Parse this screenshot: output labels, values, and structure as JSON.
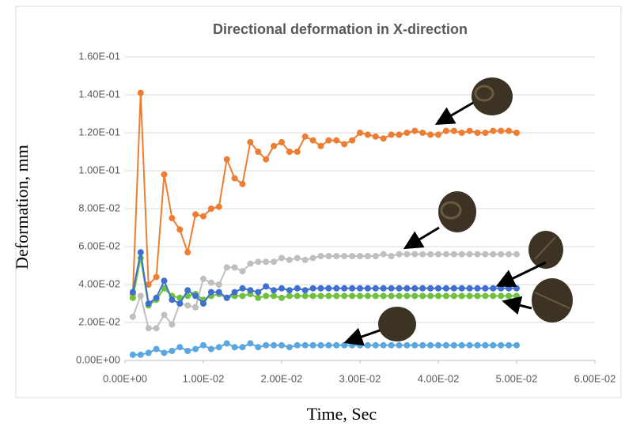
{
  "chart_data": {
    "type": "line",
    "title": "Directional deformation in X-direction",
    "x_label": "Time, Sec",
    "y_label": "Deformation, mm",
    "x": [
      0.001,
      0.002,
      0.003,
      0.004,
      0.005,
      0.006,
      0.007,
      0.008,
      0.009,
      0.01,
      0.011,
      0.012,
      0.013,
      0.014,
      0.015,
      0.016,
      0.017,
      0.018,
      0.019,
      0.02,
      0.021,
      0.022,
      0.023,
      0.024,
      0.025,
      0.026,
      0.027,
      0.028,
      0.029,
      0.03,
      0.031,
      0.032,
      0.033,
      0.034,
      0.035,
      0.036,
      0.037,
      0.038,
      0.039,
      0.04,
      0.041,
      0.042,
      0.043,
      0.044,
      0.045,
      0.046,
      0.047,
      0.048,
      0.049,
      0.05
    ],
    "series": [
      {
        "color": "#bfbfbf",
        "values": [
          0.023,
          0.034,
          0.017,
          0.017,
          0.024,
          0.019,
          0.03,
          0.029,
          0.028,
          0.043,
          0.041,
          0.04,
          0.049,
          0.049,
          0.047,
          0.051,
          0.052,
          0.052,
          0.052,
          0.054,
          0.053,
          0.054,
          0.053,
          0.054,
          0.055,
          0.055,
          0.055,
          0.055,
          0.055,
          0.055,
          0.055,
          0.055,
          0.056,
          0.055,
          0.056,
          0.056,
          0.056,
          0.056,
          0.056,
          0.056,
          0.056,
          0.056,
          0.056,
          0.056,
          0.056,
          0.056,
          0.056,
          0.056,
          0.056,
          0.056
        ]
      },
      {
        "color": "#ed7d31",
        "values": [
          0.035,
          0.141,
          0.04,
          0.044,
          0.098,
          0.075,
          0.069,
          0.057,
          0.077,
          0.076,
          0.08,
          0.081,
          0.106,
          0.096,
          0.093,
          0.115,
          0.11,
          0.106,
          0.113,
          0.115,
          0.11,
          0.11,
          0.118,
          0.116,
          0.113,
          0.116,
          0.116,
          0.114,
          0.116,
          0.12,
          0.119,
          0.118,
          0.117,
          0.119,
          0.119,
          0.12,
          0.121,
          0.12,
          0.119,
          0.119,
          0.121,
          0.121,
          0.12,
          0.121,
          0.12,
          0.12,
          0.121,
          0.121,
          0.121,
          0.12
        ]
      },
      {
        "color": "#5aa7e0",
        "values": [
          0.003,
          0.003,
          0.004,
          0.006,
          0.004,
          0.005,
          0.007,
          0.005,
          0.006,
          0.008,
          0.006,
          0.007,
          0.009,
          0.007,
          0.007,
          0.009,
          0.007,
          0.008,
          0.008,
          0.008,
          0.007,
          0.008,
          0.008,
          0.008,
          0.008,
          0.008,
          0.008,
          0.008,
          0.008,
          0.008,
          0.008,
          0.008,
          0.008,
          0.008,
          0.008,
          0.008,
          0.008,
          0.008,
          0.008,
          0.008,
          0.008,
          0.008,
          0.008,
          0.008,
          0.008,
          0.008,
          0.008,
          0.008,
          0.008,
          0.008
        ]
      },
      {
        "color": "#70c040",
        "values": [
          0.033,
          0.054,
          0.029,
          0.032,
          0.038,
          0.034,
          0.033,
          0.034,
          0.035,
          0.032,
          0.034,
          0.035,
          0.033,
          0.034,
          0.034,
          0.035,
          0.033,
          0.034,
          0.034,
          0.033,
          0.034,
          0.034,
          0.034,
          0.034,
          0.034,
          0.034,
          0.034,
          0.034,
          0.034,
          0.034,
          0.034,
          0.034,
          0.034,
          0.034,
          0.034,
          0.034,
          0.034,
          0.034,
          0.034,
          0.034,
          0.034,
          0.034,
          0.034,
          0.034,
          0.034,
          0.034,
          0.034,
          0.034,
          0.034,
          0.034
        ]
      },
      {
        "color": "#3f6fd0",
        "values": [
          0.036,
          0.057,
          0.03,
          0.033,
          0.042,
          0.032,
          0.03,
          0.037,
          0.034,
          0.03,
          0.036,
          0.036,
          0.033,
          0.036,
          0.038,
          0.037,
          0.036,
          0.039,
          0.037,
          0.038,
          0.037,
          0.038,
          0.037,
          0.038,
          0.038,
          0.038,
          0.038,
          0.038,
          0.038,
          0.038,
          0.038,
          0.038,
          0.038,
          0.038,
          0.038,
          0.038,
          0.038,
          0.038,
          0.038,
          0.038,
          0.038,
          0.038,
          0.038,
          0.038,
          0.038,
          0.038,
          0.038,
          0.038,
          0.038,
          0.038
        ]
      }
    ],
    "xlim": [
      0,
      0.06
    ],
    "xticks": [
      {
        "value": 0,
        "label": "0.00E+00"
      },
      {
        "value": 0.01,
        "label": "1.00E-02"
      },
      {
        "value": 0.02,
        "label": "2.00E-02"
      },
      {
        "value": 0.03,
        "label": "3.00E-02"
      },
      {
        "value": 0.04,
        "label": "4.00E-02"
      },
      {
        "value": 0.05,
        "label": "5.00E-02"
      },
      {
        "value": 0.06,
        "label": "6.00E-02"
      }
    ],
    "ylim": [
      0,
      0.16
    ],
    "yticks": [
      {
        "value": 0,
        "label": "0.00E+00"
      },
      {
        "value": 0.02,
        "label": "2.00E-02"
      },
      {
        "value": 0.04,
        "label": "4.00E-02"
      },
      {
        "value": 0.06,
        "label": "6.00E-02"
      },
      {
        "value": 0.08,
        "label": "8.00E-02"
      },
      {
        "value": 0.1,
        "label": "1.00E-01"
      },
      {
        "value": 0.12,
        "label": "1.20E-01"
      },
      {
        "value": 0.14,
        "label": "1.40E-01"
      },
      {
        "value": 0.16,
        "label": "1.60E-01"
      }
    ],
    "grid": true
  }
}
